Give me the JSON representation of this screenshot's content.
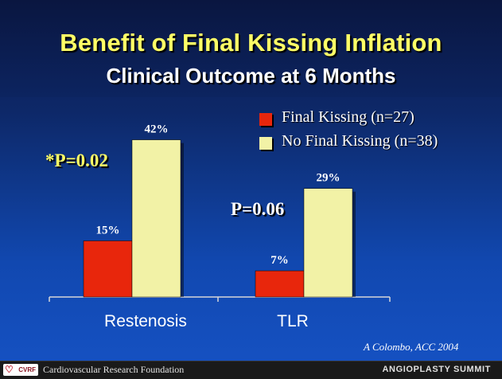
{
  "header": {
    "title": "Benefit of Final Kissing Inflation",
    "subtitle": "Clinical Outcome at 6 Months"
  },
  "chart_data": {
    "type": "bar",
    "categories": [
      "Restenosis",
      "TLR"
    ],
    "series": [
      {
        "name": "Final Kissing (n=27)",
        "values": [
          15,
          7
        ],
        "labels": [
          "15%",
          "7%"
        ],
        "color": "#e8260c"
      },
      {
        "name": "No Final Kissing (n=38)",
        "values": [
          42,
          29
        ],
        "labels": [
          "42%",
          "29%"
        ],
        "color": "#f2f2a6"
      }
    ],
    "ylim": [
      0,
      50
    ],
    "grid": false,
    "legend": "top-right",
    "annotations": [
      "*P=0.02",
      "P=0.06"
    ]
  },
  "citation": "A Colombo,  ACC 2004",
  "footer": {
    "logo": "CVRF",
    "organization": "Cardiovascular Research Foundation",
    "event": "ANGIOPLASTY SUMMIT"
  },
  "colors": {
    "title": "#ffff66",
    "text": "#ffffff",
    "axis": "#d8d8d8"
  }
}
